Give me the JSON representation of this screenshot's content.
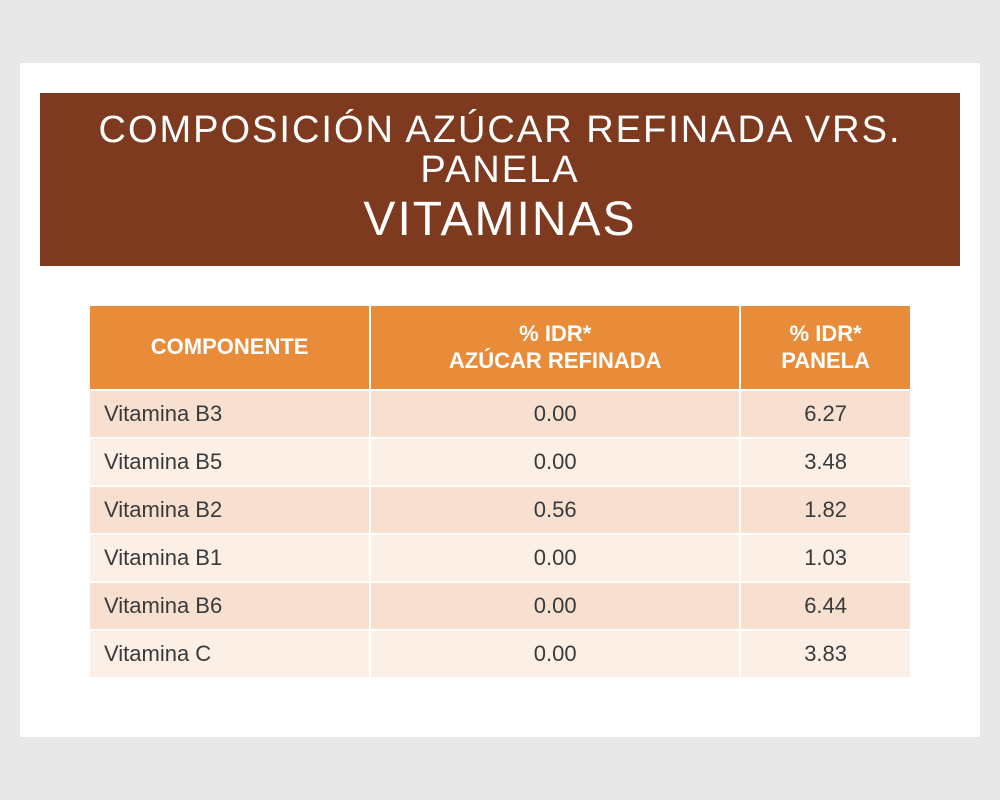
{
  "banner": {
    "line1": "COMPOSICIÓN AZÚCAR REFINADA VRS. PANELA",
    "line2": "VITAMINAS",
    "bg_color": "#7d3a1e",
    "text_color": "#ffffff",
    "line1_fontsize": 38,
    "line2_fontsize": 48
  },
  "table": {
    "type": "table",
    "header_bg": "#e98c3a",
    "header_text_color": "#ffffff",
    "row_odd_bg": "#f7e0cf",
    "row_even_bg": "#fbefe6",
    "cell_text_color": "#3a3a3a",
    "font_size": 22,
    "columns": [
      {
        "label": "COMPONENTE",
        "align": "left"
      },
      {
        "label_line1": "% IDR*",
        "label_line2": "AZÚCAR REFINADA",
        "align": "center"
      },
      {
        "label_line1": "% IDR*",
        "label_line2": "PANELA",
        "align": "center"
      }
    ],
    "rows": [
      {
        "name": "Vitamina B3",
        "refinada": "0.00",
        "panela": "6.27"
      },
      {
        "name": "Vitamina B5",
        "refinada": "0.00",
        "panela": "3.48"
      },
      {
        "name": "Vitamina B2",
        "refinada": "0.56",
        "panela": "1.82"
      },
      {
        "name": "Vitamina B1",
        "refinada": "0.00",
        "panela": "1.03"
      },
      {
        "name": "Vitamina B6",
        "refinada": "0.00",
        "panela": "6.44"
      },
      {
        "name": "Vitamina C",
        "refinada": "0.00",
        "panela": "3.83"
      }
    ]
  },
  "page": {
    "background_color": "#e8e8e8",
    "card_background": "#ffffff"
  }
}
